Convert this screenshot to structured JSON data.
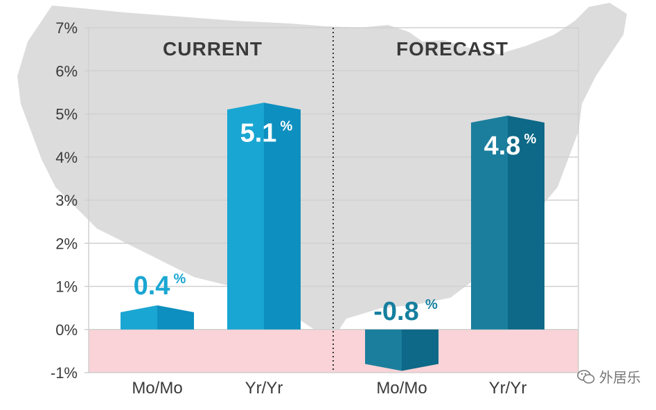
{
  "chart_data": {
    "type": "bar",
    "ylim": [
      -1,
      7
    ],
    "yticks": [
      -1,
      0,
      1,
      2,
      3,
      4,
      5,
      6,
      7
    ],
    "ytick_labels": [
      "-1%",
      "0%",
      "1%",
      "2%",
      "3%",
      "4%",
      "5%",
      "6%",
      "7%"
    ],
    "grid": true,
    "panels": [
      {
        "title": "CURRENT",
        "categories": [
          "Mo/Mo",
          "Yr/Yr"
        ],
        "values": [
          0.4,
          5.1
        ],
        "value_labels": [
          "0.4",
          "5.1"
        ]
      },
      {
        "title": "FORECAST",
        "categories": [
          "Mo/Mo",
          "Yr/Yr"
        ],
        "values": [
          -0.8,
          4.8
        ],
        "value_labels": [
          "-0.8",
          "4.8"
        ]
      }
    ],
    "value_unit": "%",
    "colors": {
      "current_bar": "#1aa6d2",
      "current_bar_dark": "#0d8fbf",
      "forecast_bar": "#1b7e9d",
      "forecast_bar_dark": "#0e6887",
      "current_label": "#1aa6d2",
      "forecast_label": "#157f9f",
      "negative_band": "#f9d3d7",
      "map": "#dcdcdc",
      "grid": "#d0d0d0",
      "text": "#3a3a3a"
    }
  },
  "watermark": {
    "text": "外居乐",
    "icon": "wechat-icon"
  }
}
